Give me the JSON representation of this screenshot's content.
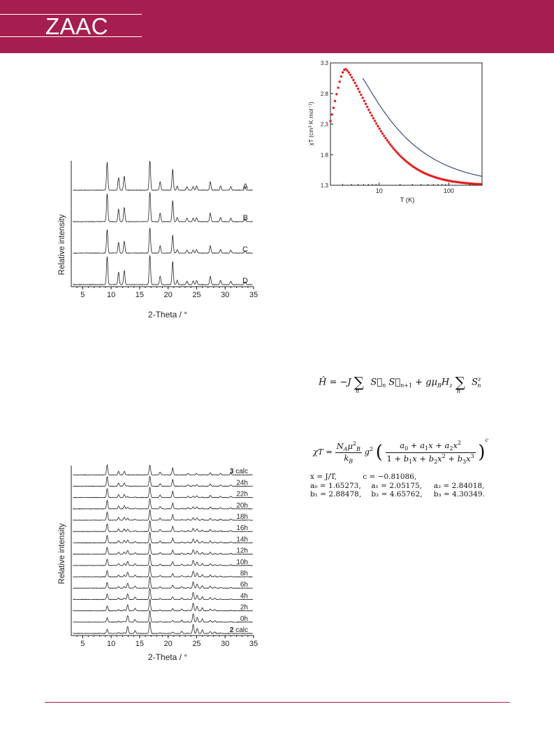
{
  "header": {
    "logo": "ZAAC",
    "brand_color": "#a51e4f"
  },
  "charts": [
    {
      "id": "pxrd1",
      "type": "line",
      "xlabel": "2-Theta / °",
      "ylabel": "Relative intensity",
      "xlim": [
        3,
        35
      ],
      "xticks": [
        5,
        10,
        15,
        20,
        25,
        30,
        35
      ],
      "series": [
        {
          "name": "A"
        },
        {
          "name": "B"
        },
        {
          "name": "C"
        },
        {
          "name": "D"
        }
      ],
      "peaks": [
        9.3,
        11.3,
        12.3,
        16.8,
        18.6,
        20.8,
        21.6,
        23.3,
        24.4,
        25.0,
        27.4,
        29.2,
        31.0,
        33.5
      ]
    },
    {
      "id": "magnetic",
      "type": "scatter",
      "xlabel": "T (K)",
      "ylabel": "χT (cm³ K mol⁻¹)",
      "xscale": "log",
      "xlim": [
        2,
        300
      ],
      "ylim": [
        1.3,
        3.3
      ],
      "xticks": [
        10,
        100
      ],
      "yticks": [
        1.3,
        1.8,
        2.3,
        2.8,
        3.3
      ],
      "series": [
        {
          "kind": "experimental",
          "color": "#e02020"
        },
        {
          "kind": "fit",
          "color": "#3a4a8a"
        }
      ]
    },
    {
      "id": "pxrd2",
      "type": "line",
      "xlabel": "2-Theta / °",
      "ylabel": "Relative intensity",
      "xlim": [
        3,
        35
      ],
      "xticks": [
        5,
        10,
        15,
        20,
        25,
        30,
        35
      ],
      "series": [
        {
          "name": "3 calc"
        },
        {
          "name": "24h"
        },
        {
          "name": "22h"
        },
        {
          "name": "20h"
        },
        {
          "name": "18h"
        },
        {
          "name": "16h"
        },
        {
          "name": "14h"
        },
        {
          "name": "12h"
        },
        {
          "name": "10h"
        },
        {
          "name": "8h"
        },
        {
          "name": "6h"
        },
        {
          "name": "4h"
        },
        {
          "name": "2h"
        },
        {
          "name": "0h"
        },
        {
          "name": "2 calc"
        }
      ]
    }
  ],
  "equations": {
    "params": {
      "x": "x = J/T,",
      "c": "c = −0.81086,",
      "a0": "a₀ = 1.65273,",
      "a1": "a₁ = 2.05175,",
      "a2": "a₂ = 2.84018,",
      "b1": "b₁ = 2.88478,",
      "b2": "b₂ = 4.65762,",
      "b3": "b₃ = 4.30349."
    }
  }
}
